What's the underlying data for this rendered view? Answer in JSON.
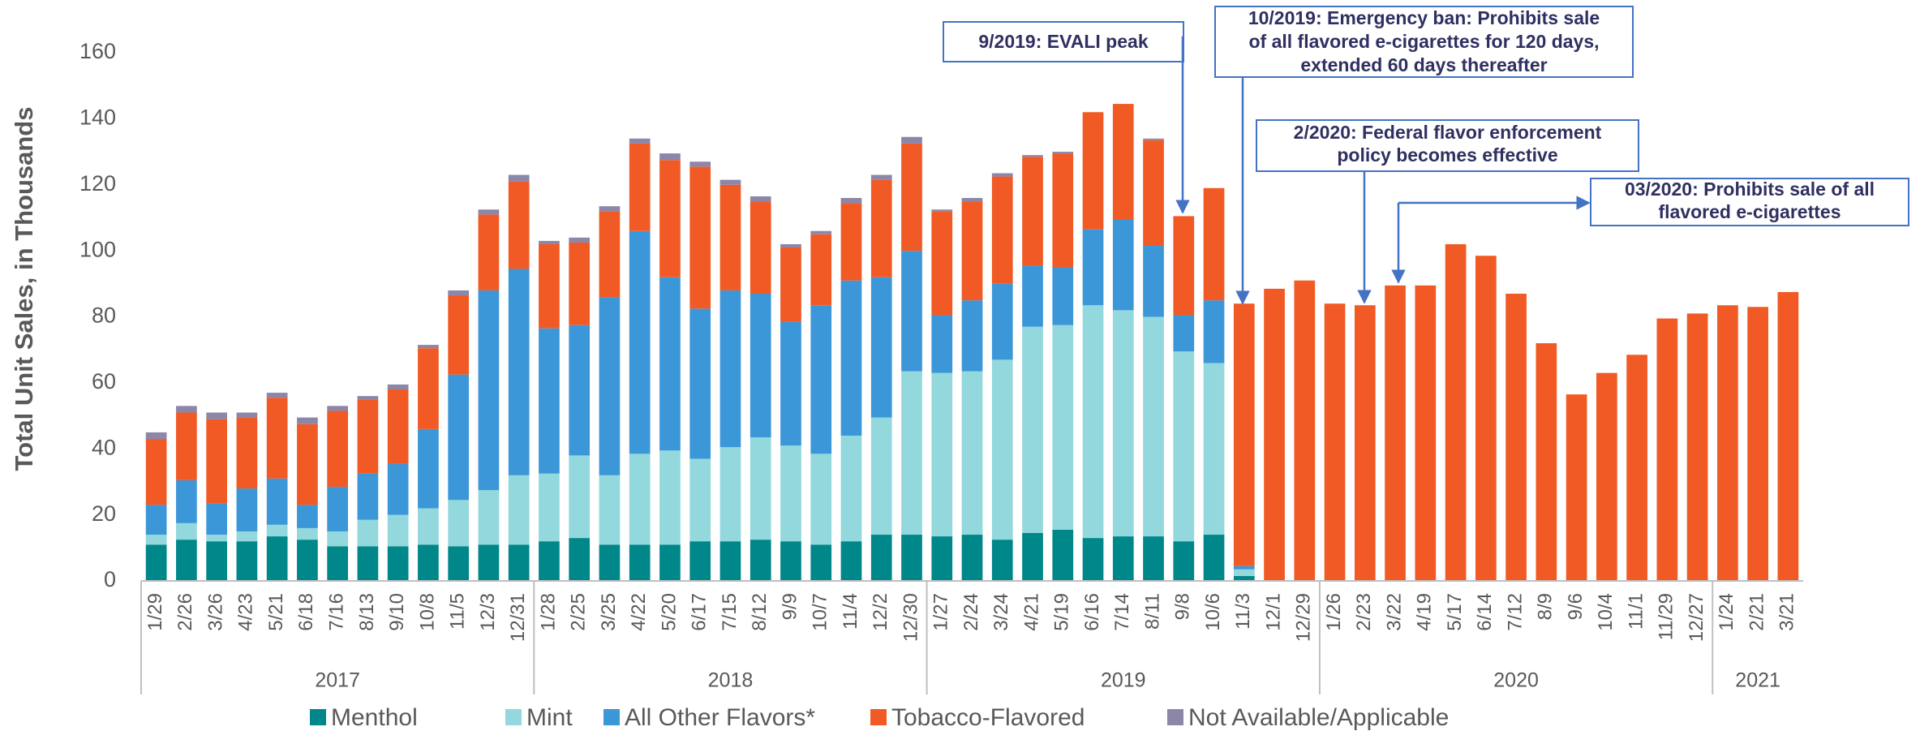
{
  "chart_data": {
    "type": "stacked_bar",
    "y_axis_label": "Total Unit Sales, in Thousands",
    "category_groups": [
      {
        "label": "2017",
        "categories": [
          "1/29",
          "2/26",
          "3/26",
          "4/23",
          "5/21",
          "6/18",
          "7/16",
          "8/13",
          "9/10",
          "10/8",
          "11/5",
          "12/3",
          "12/31"
        ]
      },
      {
        "label": "2018",
        "categories": [
          "1/28",
          "2/25",
          "3/25",
          "4/22",
          "5/20",
          "6/17",
          "7/15",
          "8/12",
          "9/9",
          "10/7",
          "11/4",
          "12/2",
          "12/30"
        ]
      },
      {
        "label": "2019",
        "categories": [
          "1/27",
          "2/24",
          "3/24",
          "4/21",
          "5/19",
          "6/16",
          "7/14",
          "8/11",
          "9/8",
          "10/6",
          "11/3",
          "12/1",
          "12/29"
        ]
      },
      {
        "label": "2020",
        "categories": [
          "1/26",
          "2/23",
          "3/22",
          "4/19",
          "5/17",
          "6/14",
          "7/12",
          "8/9",
          "9/6",
          "10/4",
          "11/1",
          "11/29",
          "12/27"
        ]
      },
      {
        "label": "2021",
        "categories": [
          "1/24",
          "2/21",
          "3/21"
        ]
      }
    ],
    "series": [
      {
        "name": "Menthol",
        "color": "#00878a",
        "values": [
          11,
          12.5,
          12,
          12,
          13.5,
          12.5,
          10.5,
          10.5,
          10.5,
          11,
          10.5,
          11,
          11,
          12,
          13,
          11,
          11,
          11,
          12,
          12,
          12.5,
          12,
          11,
          12,
          14,
          14,
          13.5,
          14,
          12.5,
          14.5,
          15.5,
          13,
          13.5,
          13.5,
          12,
          14,
          1.5,
          0,
          0,
          0,
          0,
          0,
          0,
          0,
          0,
          0,
          0,
          0,
          0,
          0,
          0,
          0,
          0,
          0,
          0
        ]
      },
      {
        "name": "Mint",
        "color": "#93d8dc",
        "values": [
          3,
          5,
          2,
          3,
          3.5,
          3.5,
          4.5,
          8,
          9.5,
          11,
          14,
          16.5,
          21,
          20.5,
          25,
          21,
          27.5,
          28.5,
          25,
          28.5,
          31,
          29,
          27.5,
          32,
          35.5,
          49.5,
          49.5,
          49.5,
          54.5,
          62.5,
          62,
          70.5,
          68.5,
          66.5,
          57.5,
          52,
          2,
          0,
          0,
          0,
          0,
          0,
          0,
          0,
          0,
          0,
          0,
          0,
          0,
          0,
          0,
          0,
          0,
          0,
          0
        ]
      },
      {
        "name": "All Other Flavors*",
        "color": "#3c97d9",
        "values": [
          9,
          13,
          9.5,
          13,
          14,
          7,
          13.5,
          14,
          15.5,
          24,
          38,
          60.5,
          62.5,
          44,
          39.5,
          54,
          67.5,
          52.5,
          45.5,
          47.5,
          43.5,
          37.5,
          45,
          47,
          42.5,
          36.5,
          17.5,
          21.5,
          23,
          18.5,
          17.5,
          23,
          27.5,
          21.5,
          11,
          19,
          1,
          0,
          0,
          0,
          0,
          0,
          0,
          0,
          0,
          0,
          0,
          0,
          0,
          0,
          0,
          0,
          0,
          0,
          0
        ]
      },
      {
        "name": "Tobacco-Flavored",
        "color": "#f15a24",
        "values": [
          20,
          20.5,
          25.5,
          21.5,
          24.5,
          24.5,
          23,
          22.5,
          22.5,
          24.5,
          24,
          23,
          26.5,
          25.5,
          25,
          26,
          26.5,
          35.5,
          43,
          32,
          28,
          22.5,
          21.5,
          23.5,
          29.5,
          32.5,
          31.5,
          30,
          32.5,
          33,
          34.5,
          35.5,
          35,
          32,
          30,
          34,
          79.5,
          88.5,
          91,
          84,
          83.5,
          89.5,
          89.5,
          102,
          98.5,
          87,
          72,
          56.5,
          63,
          68.5,
          79.5,
          81,
          83.5,
          83,
          87.5
        ]
      },
      {
        "name": "Not Available/Applicable",
        "color": "#8c86a8",
        "values": [
          2,
          2,
          2,
          1.5,
          1.5,
          2,
          1.5,
          1,
          1.5,
          1,
          1.5,
          1.5,
          2,
          1,
          1.5,
          1.5,
          1.5,
          2,
          1.5,
          1.5,
          1.5,
          1,
          1,
          1.5,
          1.5,
          2,
          0.5,
          1,
          1,
          0.5,
          0.5,
          0,
          0,
          0.5,
          0,
          0,
          0,
          0,
          0,
          0,
          0,
          0,
          0,
          0,
          0,
          0,
          0,
          0,
          0,
          0,
          0,
          0,
          0,
          0,
          0
        ]
      }
    ],
    "ylim": [
      0,
      160
    ],
    "yticks": [
      0,
      20,
      40,
      60,
      80,
      100,
      120,
      140,
      160
    ],
    "annotations": [
      {
        "lines": [
          "9/2019: EVALI peak"
        ]
      },
      {
        "lines": [
          "10/2019: Emergency ban: Prohibits sale",
          "of all flavored e-cigarettes for 120 days,",
          "extended 60 days thereafter"
        ]
      },
      {
        "lines": [
          "2/2020: Federal flavor enforcement",
          "policy becomes effective"
        ]
      },
      {
        "lines": [
          "03/2020: Prohibits sale of all",
          "flavored e-cigarettes"
        ]
      }
    ]
  }
}
